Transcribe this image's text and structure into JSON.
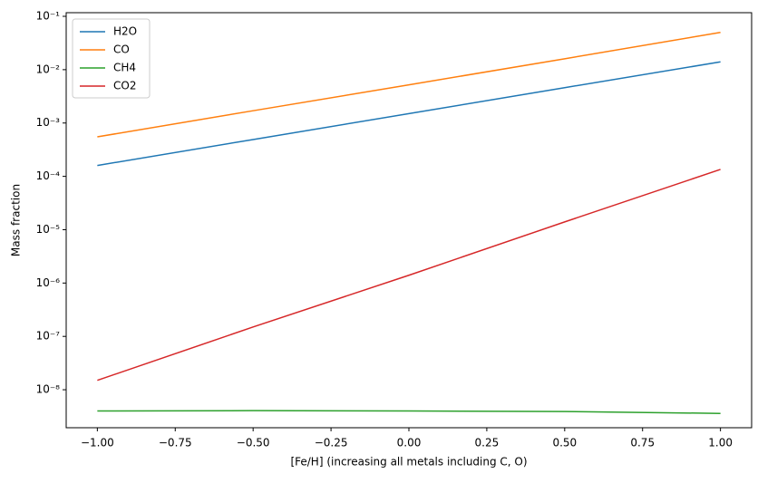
{
  "chart_data": {
    "type": "line",
    "xlabel": "[Fe/H] (increasing all metals including C, O)",
    "ylabel": "Mass fraction",
    "x": [
      -1.0,
      -0.5,
      0.0,
      0.5,
      1.0
    ],
    "series": [
      {
        "name": "H2O",
        "color": "#1f77b4",
        "values": [
          0.00016,
          0.00049,
          0.0015,
          0.0046,
          0.014
        ]
      },
      {
        "name": "CO",
        "color": "#ff7f0e",
        "values": [
          0.00055,
          0.0017,
          0.0052,
          0.016,
          0.05
        ]
      },
      {
        "name": "CH4",
        "color": "#2ca02c",
        "values": [
          4e-09,
          4.05e-09,
          4e-09,
          3.9e-09,
          3.6e-09
        ]
      },
      {
        "name": "CO2",
        "color": "#d62728",
        "values": [
          1.5e-08,
          1.5e-07,
          1.4e-06,
          1.4e-05,
          0.000135
        ]
      }
    ],
    "xlim": [
      -1.1,
      1.1
    ],
    "xticks": [
      {
        "value": -1,
        "label": "−1.00"
      },
      {
        "value": -0.75,
        "label": "−0.75"
      },
      {
        "value": -0.5,
        "label": "−0.50"
      },
      {
        "value": -0.25,
        "label": "−0.25"
      },
      {
        "value": 0,
        "label": "0.00"
      },
      {
        "value": 0.25,
        "label": "0.25"
      },
      {
        "value": 0.5,
        "label": "0.50"
      },
      {
        "value": 0.75,
        "label": "0.75"
      },
      {
        "value": 1,
        "label": "1.00"
      }
    ],
    "ylim": [
      1.94e-09,
      0.117
    ],
    "yscale": "log",
    "yticks": [
      {
        "value": 1e-08,
        "label": "10⁻⁸"
      },
      {
        "value": 1e-07,
        "label": "10⁻⁷"
      },
      {
        "value": 1e-06,
        "label": "10⁻⁶"
      },
      {
        "value": 1e-05,
        "label": "10⁻⁵"
      },
      {
        "value": 0.0001,
        "label": "10⁻⁴"
      },
      {
        "value": 0.001,
        "label": "10⁻³"
      },
      {
        "value": 0.01,
        "label": "10⁻²"
      },
      {
        "value": 0.1,
        "label": "10⁻¹"
      }
    ],
    "legend": "upper left"
  }
}
